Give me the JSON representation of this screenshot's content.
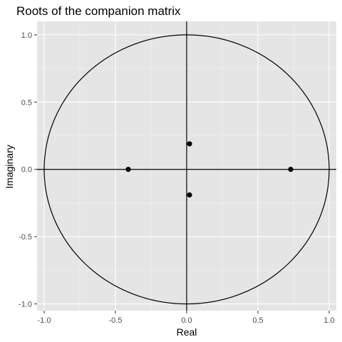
{
  "chart_data": {
    "type": "scatter",
    "title": "Roots of the companion matrix",
    "xlabel": "Real",
    "ylabel": "Imaginary",
    "xlim": [
      -1.05,
      1.05
    ],
    "ylim": [
      -1.05,
      1.1
    ],
    "x_ticks": [
      -1.0,
      -0.5,
      0.0,
      0.5,
      1.0
    ],
    "x_tick_labels": [
      "-1.0",
      "-0.5",
      "0.0",
      "0.5",
      "1.0"
    ],
    "y_ticks": [
      -1.0,
      -0.5,
      0.0,
      0.5,
      1.0
    ],
    "y_tick_labels": [
      "-1.0",
      "-0.5",
      "0.0",
      "0.5",
      "1.0"
    ],
    "grid": true,
    "unit_circle": {
      "center": [
        0,
        0
      ],
      "radius": 1
    },
    "reference_lines": {
      "horizontal": 0,
      "vertical": 0
    },
    "points": [
      {
        "x": 0.73,
        "y": 0.0
      },
      {
        "x": -0.41,
        "y": 0.0
      },
      {
        "x": 0.02,
        "y": 0.19
      },
      {
        "x": 0.02,
        "y": -0.19
      }
    ],
    "colors": {
      "panel_background": "#e5e5e5",
      "grid_major": "#ffffff",
      "grid_minor": "#f2f2f2",
      "mark": "#000000",
      "tick_label": "#4d4d4d",
      "tick_mark": "#333333"
    }
  }
}
